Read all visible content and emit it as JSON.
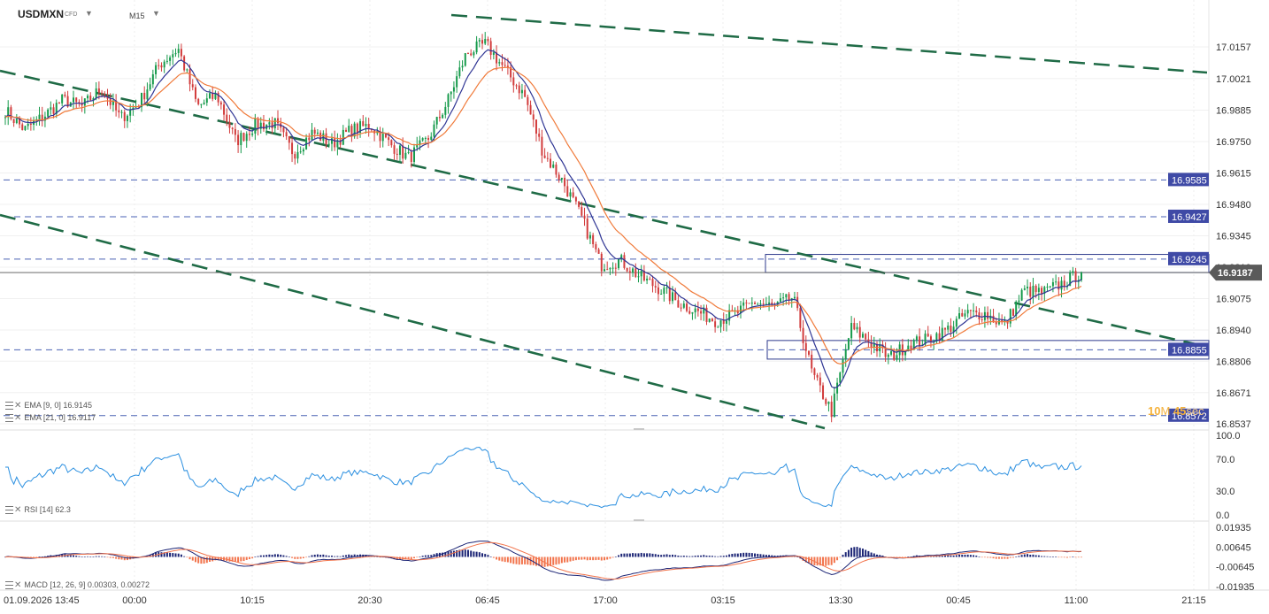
{
  "symbol": {
    "name": "USDMXN",
    "type": "CFD",
    "timeframe": "M15"
  },
  "colors": {
    "candle_up": "#169a4b",
    "candle_down": "#d23c3c",
    "ema_fast": "#2f3594",
    "ema_slow": "#f07a3a",
    "trendline": "#1f6b46",
    "hline": "#4a62b4",
    "tag": "#3f4aa6",
    "rsi": "#2a8fe0",
    "macd_pos": "#1b2475",
    "macd_neg": "#f2744c",
    "timer": "#f5b23c"
  },
  "price_axis": {
    "ticks": [
      "17.0157",
      "17.0021",
      "16.9885",
      "16.9750",
      "16.9615",
      "16.9480",
      "16.9345",
      "16.9210",
      "16.9075",
      "16.8940",
      "16.8806",
      "16.8671",
      "16.8537"
    ]
  },
  "price_levels": [
    {
      "label": "16.9585",
      "value": 16.9585
    },
    {
      "label": "16.9427",
      "value": 16.9427
    },
    {
      "label": "16.9245",
      "value": 16.9245
    },
    {
      "label": "16.8855",
      "value": 16.8855
    },
    {
      "label": "16.8572",
      "value": 16.8572
    }
  ],
  "current_price": {
    "label": "16.9187",
    "value": 16.9187
  },
  "zones": [
    {
      "name": "resistance-zone",
      "from": 16.9187,
      "to": 16.9265
    },
    {
      "name": "support-zone",
      "from": 16.8815,
      "to": 16.8895
    }
  ],
  "legends": {
    "ema9": "EMA [9, 0] 16.9145",
    "ema21": "EMA [21, 0] 16.9117",
    "rsi": "RSI [14] 62.3",
    "macd": "MACD [12, 26, 9] 0.00303, 0.00272"
  },
  "rsi_axis": {
    "ticks": [
      "100.0",
      "70.0",
      "30.0",
      "0.0"
    ]
  },
  "macd_axis": {
    "ticks": [
      "0.01935",
      "0.00645",
      "-0.00645",
      "-0.01935"
    ]
  },
  "time_axis": {
    "labels": [
      "01.09.2026 13:45",
      "00:00",
      "10:15",
      "20:30",
      "06:45",
      "17:00",
      "03:15",
      "13:30",
      "00:45",
      "11:00",
      "21:15"
    ]
  },
  "countdown": {
    "value": "10",
    "unit": "M",
    "seconds": "45",
    "seconds_unit": "sec"
  },
  "chart_data": {
    "type": "candlestick",
    "symbol": "USDMXN",
    "timeframe": "M15",
    "last_price": 16.9187,
    "y_range": [
      16.85,
      17.023
    ],
    "waypoints": [
      16.9885,
      16.98,
      16.986,
      16.993,
      16.99,
      16.998,
      16.985,
      16.992,
      17.008,
      17.015,
      16.99,
      16.995,
      16.975,
      16.982,
      16.983,
      16.97,
      16.979,
      16.974,
      16.98,
      16.982,
      16.974,
      16.968,
      16.976,
      16.992,
      17.013,
      17.017,
      17.006,
      16.995,
      16.97,
      16.958,
      16.942,
      16.922,
      16.924,
      16.917,
      16.912,
      16.906,
      16.902,
      16.898,
      16.901,
      16.906,
      16.904,
      16.908,
      16.875,
      16.859,
      16.895,
      16.889,
      16.882,
      16.888,
      16.89,
      16.894,
      16.901,
      16.901,
      16.896,
      16.911,
      16.91,
      16.914,
      16.9187
    ]
  }
}
